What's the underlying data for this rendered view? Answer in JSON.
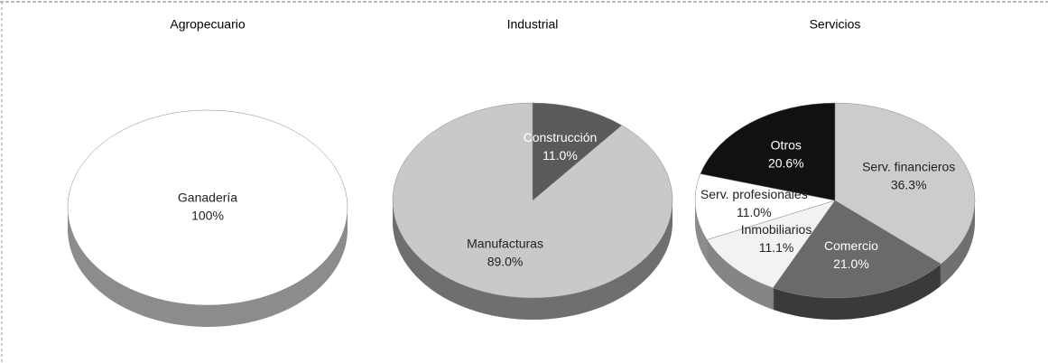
{
  "chart_data": [
    {
      "type": "pie",
      "title": "Agropecuario",
      "categories": [
        "Ganadería"
      ],
      "values": [
        100
      ],
      "value_labels": [
        "100%"
      ],
      "colors": [
        "#ffffff"
      ]
    },
    {
      "type": "pie",
      "title": "Industrial",
      "categories": [
        "Construcción",
        "Manufacturas"
      ],
      "values": [
        11.0,
        89.0
      ],
      "value_labels": [
        "11.0%",
        "89.0%"
      ],
      "colors": [
        "#5a5a5a",
        "#c9c9c9"
      ]
    },
    {
      "type": "pie",
      "title": "Servicios",
      "categories": [
        "Serv. financieros",
        "Comercio",
        "Inmobiliarios",
        "Serv. profesionales",
        "Otros"
      ],
      "values": [
        36.3,
        21.0,
        11.1,
        11.0,
        20.6
      ],
      "value_labels": [
        "36.3%",
        "21.0%",
        "11.1%",
        "11.0%",
        "20.6%"
      ],
      "colors": [
        "#cccccc",
        "#6a6a6a",
        "#f2f2f2",
        "#ffffff",
        "#111111"
      ]
    }
  ]
}
